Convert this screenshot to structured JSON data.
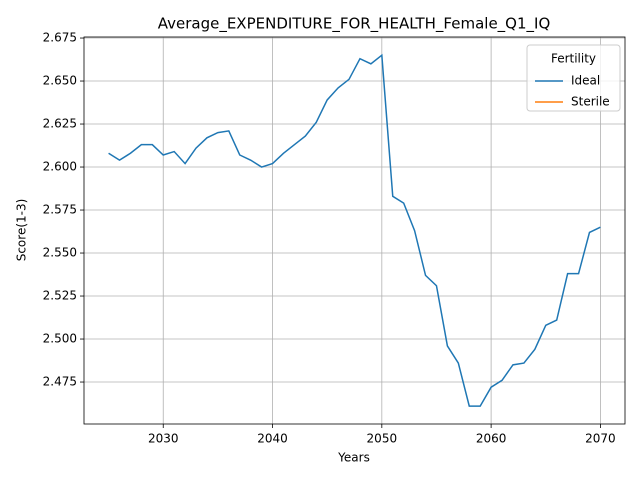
{
  "chart_data": {
    "type": "line",
    "title": "Average_EXPENDITURE_FOR_HEALTH_Female_Q1_IQ",
    "xlabel": "Years",
    "ylabel": "Score(1-3)",
    "legend_title": "Fertility",
    "legend": "upper right",
    "grid": true,
    "x": [
      2025,
      2026,
      2027,
      2028,
      2029,
      2030,
      2031,
      2032,
      2033,
      2034,
      2035,
      2036,
      2037,
      2038,
      2039,
      2040,
      2041,
      2042,
      2043,
      2044,
      2045,
      2046,
      2047,
      2048,
      2049,
      2050,
      2051,
      2052,
      2053,
      2054,
      2055,
      2056,
      2057,
      2058,
      2059,
      2060,
      2061,
      2062,
      2063,
      2064,
      2065,
      2066,
      2067,
      2068,
      2069,
      2070
    ],
    "series": [
      {
        "name": "Ideal",
        "color": "#1f77b4",
        "values": [
          2.608,
          2.604,
          2.608,
          2.613,
          2.613,
          2.607,
          2.609,
          2.602,
          2.611,
          2.617,
          2.62,
          2.621,
          2.607,
          2.604,
          2.6,
          2.602,
          2.608,
          2.613,
          2.618,
          2.626,
          2.639,
          2.646,
          2.651,
          2.663,
          2.66,
          2.665,
          2.583,
          2.579,
          2.563,
          2.537,
          2.531,
          2.496,
          2.486,
          2.461,
          2.461,
          2.472,
          2.476,
          2.485,
          2.486,
          2.494,
          2.508,
          2.511,
          2.538,
          2.538,
          2.562,
          2.565
        ]
      },
      {
        "name": "Sterile",
        "color": "#ff7f0e",
        "values": [
          null,
          null,
          null,
          null,
          null,
          null,
          null,
          null,
          null,
          null,
          null,
          null,
          null,
          null,
          null,
          null,
          null,
          null,
          null,
          null,
          null,
          null,
          null,
          null,
          null,
          null,
          null,
          null,
          null,
          null,
          null,
          null,
          null,
          null,
          null,
          null,
          null,
          null,
          null,
          null,
          null,
          null,
          null,
          null,
          null,
          null
        ]
      }
    ],
    "xlim": [
      2022.75,
      2072.25
    ],
    "xticks": [
      2030,
      2040,
      2050,
      2060,
      2070
    ],
    "ylim": [
      2.4506,
      2.6756
    ],
    "yticks": [
      2.475,
      {
        "value": 2.5,
        "label": "2.500"
      },
      2.525,
      {
        "value": 2.55,
        "label": "2.550"
      },
      2.575,
      {
        "value": 2.6,
        "label": "2.600"
      },
      2.625,
      {
        "value": 2.65,
        "label": "2.650"
      },
      2.675
    ]
  }
}
